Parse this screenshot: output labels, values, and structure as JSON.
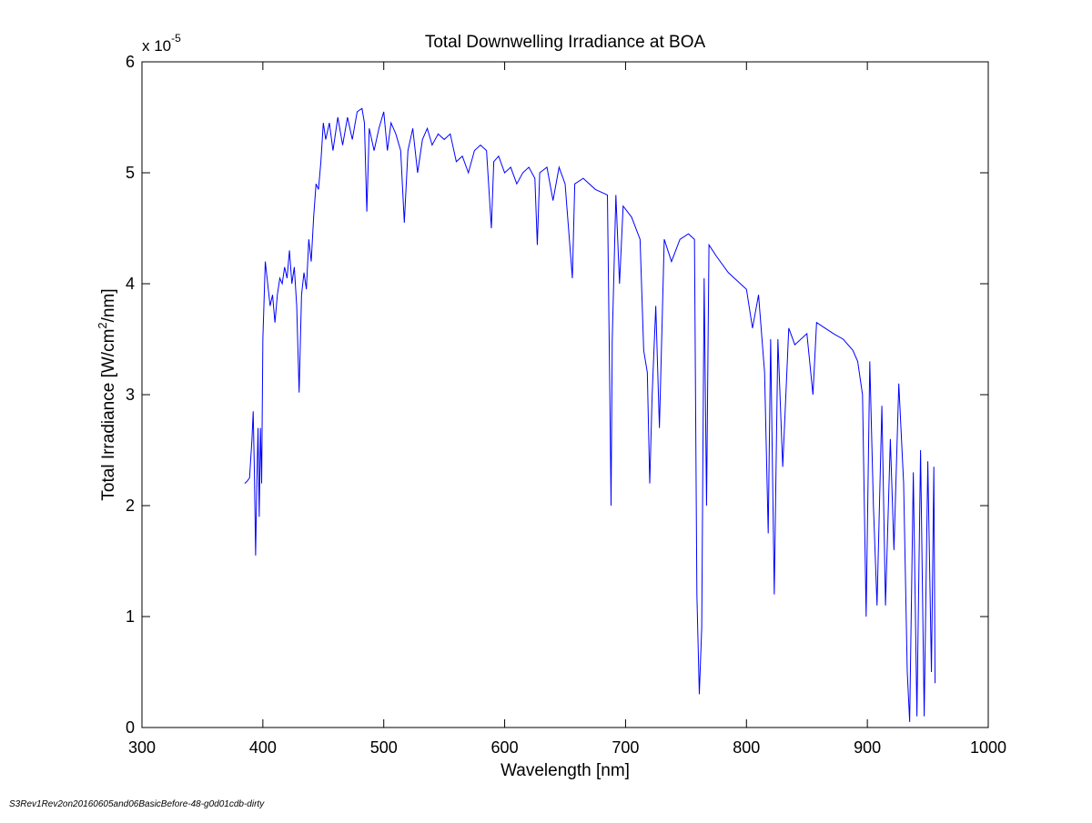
{
  "chart_data": {
    "type": "line",
    "title": "Total Downwelling Irradiance at BOA",
    "xlabel": "Wavelength [nm]",
    "ylabel": [
      "Total Irradiance [W/cm",
      "2",
      "/nm]"
    ],
    "y_multiplier": {
      "base": "x 10",
      "exponent": "-5"
    },
    "xlim": [
      300,
      1000
    ],
    "xticks": [
      300,
      400,
      500,
      600,
      700,
      800,
      900,
      1000
    ],
    "ylim": [
      0,
      6
    ],
    "yticks": [
      0,
      1,
      2,
      3,
      4,
      5,
      6
    ],
    "grid": false,
    "x": [
      385,
      387,
      389,
      391,
      392,
      393,
      394,
      395,
      396,
      397,
      398,
      399,
      400,
      402,
      404,
      406,
      408,
      410,
      412,
      414,
      416,
      418,
      420,
      422,
      424,
      426,
      428,
      430,
      432,
      434,
      436,
      438,
      440,
      442,
      444,
      446,
      448,
      450,
      452,
      455,
      458,
      462,
      466,
      470,
      474,
      478,
      482,
      484,
      486,
      488,
      492,
      496,
      500,
      503,
      506,
      510,
      514,
      517,
      520,
      524,
      528,
      532,
      536,
      540,
      545,
      550,
      555,
      560,
      565,
      570,
      575,
      580,
      585,
      589,
      591,
      595,
      600,
      605,
      610,
      615,
      620,
      625,
      627,
      629,
      635,
      640,
      645,
      650,
      656,
      658,
      665,
      675,
      685,
      687,
      688,
      689,
      692,
      695,
      698,
      705,
      712,
      715,
      718,
      720,
      722,
      725,
      728,
      732,
      738,
      745,
      752,
      757,
      759,
      761,
      763,
      765,
      767,
      769,
      775,
      785,
      795,
      800,
      805,
      810,
      815,
      818,
      820,
      823,
      826,
      830,
      835,
      840,
      850,
      855,
      858,
      865,
      872,
      880,
      888,
      892,
      896,
      899,
      902,
      905,
      908,
      912,
      915,
      919,
      922,
      926,
      930,
      933,
      935,
      938,
      941,
      944,
      947,
      950,
      953,
      955,
      956
    ],
    "series": [
      {
        "color": "#0000ff",
        "values": [
          2.2,
          2.22,
          2.25,
          2.6,
          2.85,
          2.3,
          1.55,
          2.2,
          2.7,
          1.9,
          2.7,
          2.2,
          3.5,
          4.2,
          4.0,
          3.8,
          3.9,
          3.65,
          3.9,
          4.05,
          4.0,
          4.15,
          4.05,
          4.3,
          4.0,
          4.15,
          3.8,
          3.02,
          3.9,
          4.1,
          3.95,
          4.4,
          4.2,
          4.6,
          4.9,
          4.85,
          5.1,
          5.45,
          5.3,
          5.45,
          5.2,
          5.5,
          5.25,
          5.5,
          5.3,
          5.55,
          5.58,
          5.45,
          4.65,
          5.4,
          5.2,
          5.4,
          5.55,
          5.2,
          5.45,
          5.35,
          5.2,
          4.55,
          5.2,
          5.4,
          5.0,
          5.3,
          5.4,
          5.25,
          5.35,
          5.3,
          5.35,
          5.1,
          5.15,
          5.0,
          5.2,
          5.25,
          5.2,
          4.5,
          5.1,
          5.15,
          5.0,
          5.05,
          4.9,
          5.0,
          5.05,
          4.95,
          4.35,
          5.0,
          5.05,
          4.75,
          5.05,
          4.9,
          4.05,
          4.9,
          4.95,
          4.85,
          4.8,
          3.0,
          2.0,
          3.5,
          4.8,
          4.0,
          4.7,
          4.6,
          4.4,
          3.4,
          3.2,
          2.2,
          3.0,
          3.8,
          2.7,
          4.4,
          4.2,
          4.4,
          4.45,
          4.4,
          1.2,
          0.3,
          0.9,
          4.05,
          2.0,
          4.35,
          4.25,
          4.1,
          4.0,
          3.95,
          3.6,
          3.9,
          3.2,
          1.75,
          3.5,
          1.2,
          3.5,
          2.35,
          3.6,
          3.45,
          3.55,
          3.0,
          3.65,
          3.6,
          3.55,
          3.5,
          3.4,
          3.3,
          3.0,
          1.0,
          3.3,
          2.0,
          1.1,
          2.9,
          1.1,
          2.6,
          1.6,
          3.1,
          2.2,
          0.5,
          0.05,
          2.3,
          0.1,
          2.5,
          0.1,
          2.4,
          0.5,
          2.35,
          0.4
        ]
      }
    ]
  },
  "footer": "S3Rev1Rev2on20160605and06BasicBefore-48-g0d01cdb-dirty"
}
